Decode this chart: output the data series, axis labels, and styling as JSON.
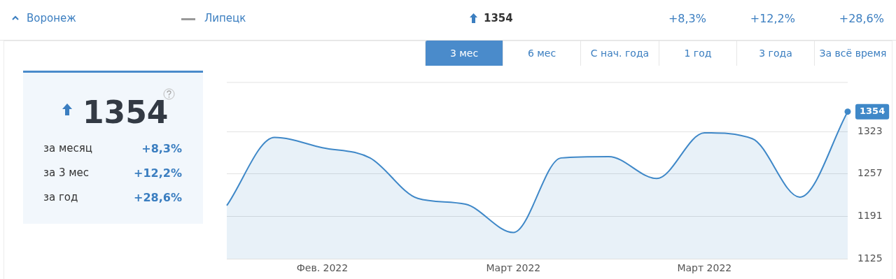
{
  "chart_data": {
    "type": "area",
    "categories": [
      null,
      null,
      "Фев. 2022",
      null,
      null,
      null,
      "Март 2022",
      null,
      null,
      null,
      "Март 2022",
      null,
      null,
      null
    ],
    "values": [
      1208,
      1314,
      1298,
      1282,
      1219,
      1210,
      1166,
      1282,
      1284,
      1250,
      1321,
      1312,
      1221,
      1354
    ],
    "value_labels": [
      null,
      null,
      null,
      null,
      null,
      null,
      null,
      null,
      null,
      null,
      null,
      null,
      null,
      "1354"
    ],
    "color": "#3f88c8",
    "ylim": [
      1125,
      1400
    ],
    "yticks": [
      1125,
      1191,
      1257,
      1323
    ],
    "grid": "y",
    "marker": "none",
    "legend": false,
    "annotations": [
      "Воронеж",
      "Липецк",
      "1354",
      "+8,3%",
      "+12,2%",
      "+28,6%",
      "3 мес",
      "6 мес",
      "С нач. года",
      "1 год",
      "3 года",
      "За всё время",
      "1354",
      "за месяц",
      "+8,3%",
      "за 3 мес",
      "+12,2%",
      "за год",
      "+28,6%"
    ]
  }
}
